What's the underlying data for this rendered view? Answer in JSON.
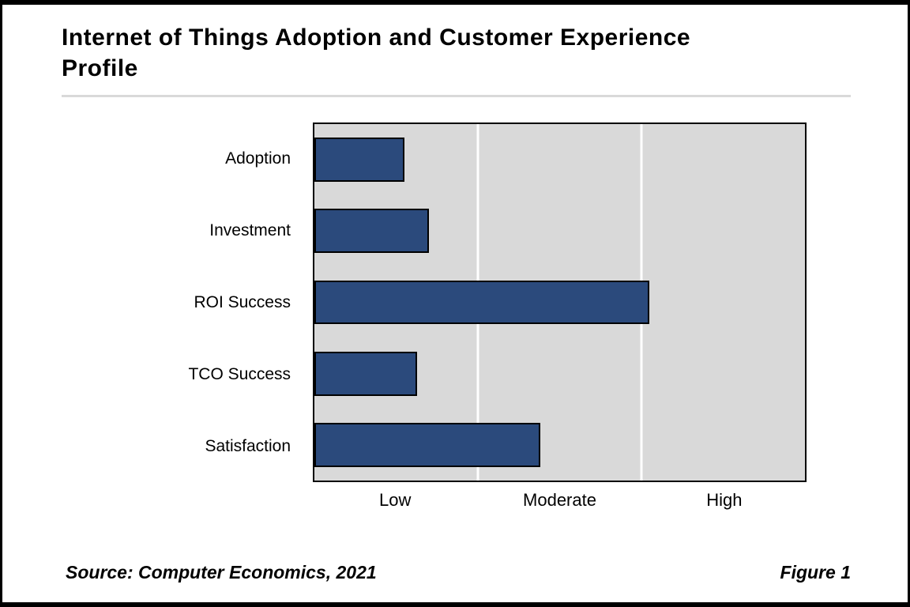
{
  "page": {
    "title": "Internet of Things Adoption and Customer Experience Profile",
    "source": "Source: Computer Economics, 2021",
    "figure_label": "Figure 1"
  },
  "colors": {
    "bar_fill": "#2b4a7c",
    "bar_border": "#000000",
    "plot_bg": "#d9d9d9",
    "gridline": "#ffffff"
  },
  "chart_data": {
    "type": "bar",
    "orientation": "horizontal",
    "title": "Internet of Things Adoption and Customer Experience Profile",
    "categories": [
      "Adoption",
      "Investment",
      "ROI Success",
      "TCO Success",
      "Satisfaction"
    ],
    "values": [
      0.55,
      0.7,
      2.05,
      0.63,
      1.38
    ],
    "xlim": [
      0,
      3
    ],
    "x_tick_labels": [
      "Low",
      "Moderate",
      "High"
    ],
    "x_tick_positions": [
      0.5,
      1.5,
      2.5
    ],
    "gridline_positions": [
      1,
      2
    ],
    "legend": "none",
    "grid": "vertical-only",
    "source": "Source: Computer Economics, 2021",
    "figure": "Figure 1"
  }
}
